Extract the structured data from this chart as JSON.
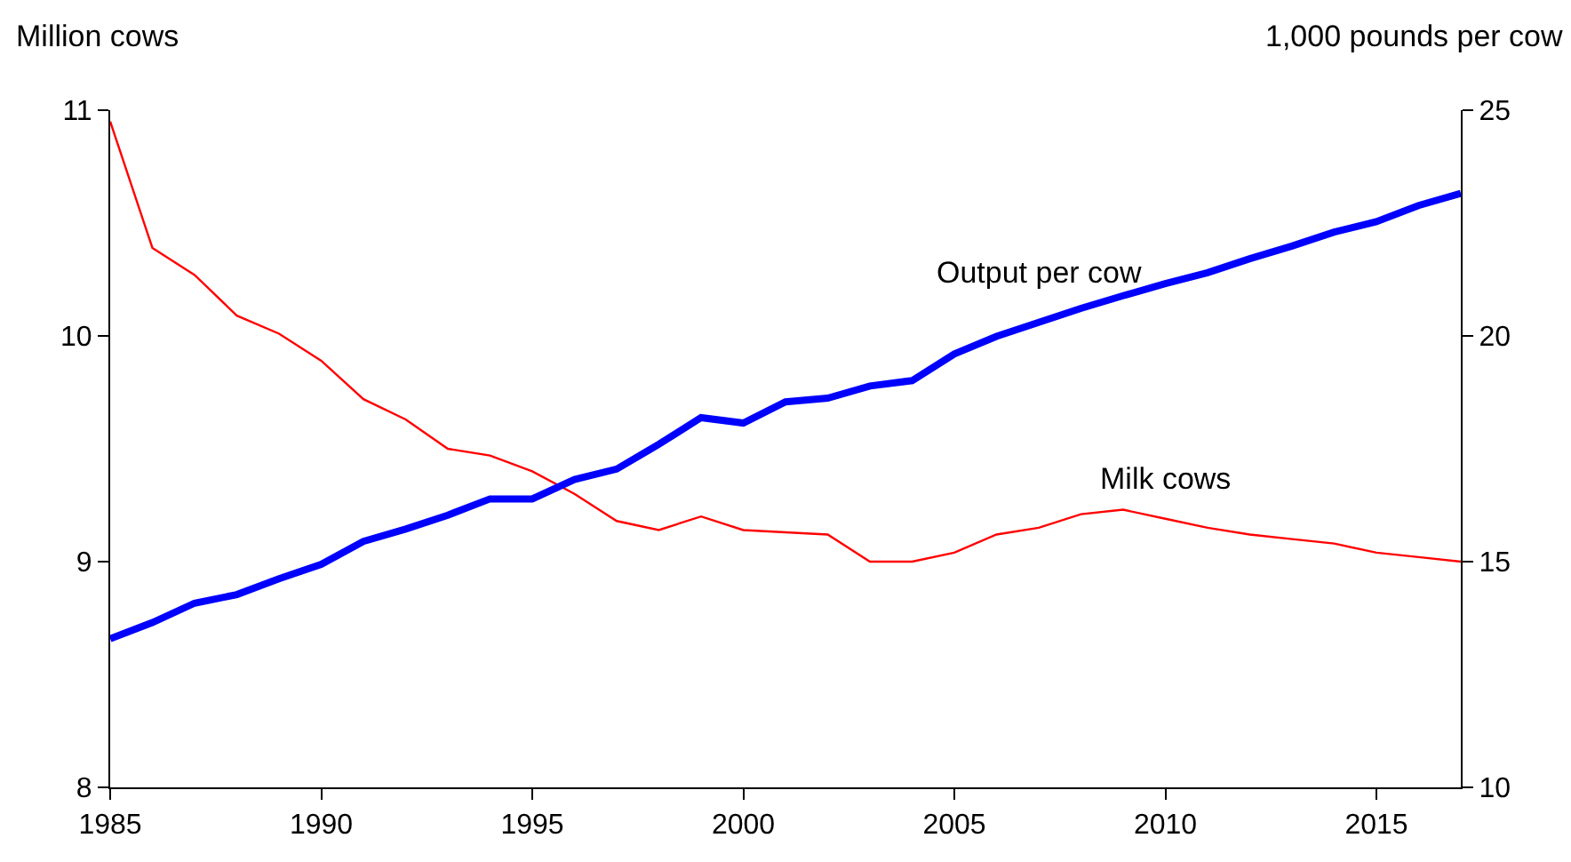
{
  "chart_data": {
    "type": "line",
    "ylabel": "Million cows",
    "y2label": "1,000 pounds per cow",
    "x": [
      1985,
      1986,
      1987,
      1988,
      1989,
      1990,
      1991,
      1992,
      1993,
      1994,
      1995,
      1996,
      1997,
      1998,
      1999,
      2000,
      2001,
      2002,
      2003,
      2004,
      2005,
      2006,
      2007,
      2008,
      2009,
      2010,
      2011,
      2012,
      2013,
      2014,
      2015,
      2016,
      2017
    ],
    "series": [
      {
        "name": "Milk cows",
        "color": "#ff0000",
        "values": [
          10.95,
          10.39,
          10.27,
          10.09,
          10.01,
          9.89,
          9.72,
          9.63,
          9.5,
          9.47,
          9.4,
          9.3,
          9.18,
          9.14,
          9.2,
          9.14,
          9.13,
          9.12,
          9.0,
          9.0,
          9.04,
          9.12,
          9.15,
          9.21,
          9.23,
          9.19,
          9.15,
          9.12,
          9.1,
          9.08,
          9.04,
          9.02,
          9.0
        ]
      },
      {
        "name": "Output per cow",
        "color": "#0000ff",
        "axis": "y2",
        "values": [
          13.29,
          13.65,
          14.08,
          14.27,
          14.62,
          14.94,
          15.45,
          15.72,
          16.03,
          16.39,
          16.39,
          16.82,
          17.05,
          17.6,
          18.19,
          18.07,
          18.54,
          18.62,
          18.89,
          19.01,
          19.6,
          19.99,
          20.3,
          20.61,
          20.89,
          21.16,
          21.4,
          21.71,
          21.99,
          22.3,
          22.53,
          22.89,
          23.16
        ]
      }
    ],
    "xlim": [
      1985,
      2017
    ],
    "xticks": [
      1985,
      1990,
      1995,
      2000,
      2005,
      2010,
      2015
    ],
    "ylim": [
      8,
      11
    ],
    "yticks": [
      8,
      9,
      10,
      11
    ],
    "y2lim": [
      10,
      25
    ],
    "y2ticks": [
      10,
      15,
      20,
      25
    ],
    "legend": false,
    "marker": "none",
    "line_style": "solid"
  }
}
